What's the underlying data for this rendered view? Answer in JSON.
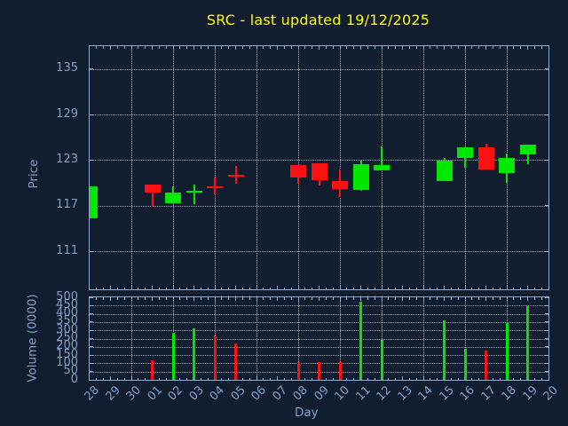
{
  "title": "SRC - last updated 19/12/2025",
  "colors": {
    "background": "#131d30",
    "axis_frame": "#8aaad2",
    "tick_label": "#7f9fc8",
    "grid": "#c9ccd4",
    "title": "#ffff00",
    "bull": "#00e800",
    "bear": "#ff1111"
  },
  "chart_data": {
    "type": "candlestick_with_volume",
    "title": "SRC - last updated 19/12/2025",
    "xlabel": "Day",
    "categories": [
      "28",
      "29",
      "30",
      "01",
      "02",
      "03",
      "04",
      "05",
      "06",
      "07",
      "08",
      "09",
      "10",
      "11",
      "12",
      "13",
      "14",
      "15",
      "16",
      "17",
      "18",
      "19",
      "20"
    ],
    "no_data_days": [
      "29",
      "30",
      "06",
      "07",
      "13",
      "14",
      "20"
    ],
    "price_axis": {
      "label": "Price",
      "ylim": [
        106,
        138
      ],
      "yticks": [
        111,
        117,
        123,
        129,
        135
      ],
      "grid": true
    },
    "volume_axis": {
      "label": "Volume (0000)",
      "ylim": [
        0,
        500
      ],
      "yticks": [
        0,
        50,
        100,
        150,
        200,
        250,
        300,
        350,
        400,
        450,
        500
      ],
      "grid": true
    },
    "candles": [
      {
        "day": "28",
        "open": 115.3,
        "high": 119.6,
        "low": 115.3,
        "close": 119.6,
        "volume": 0
      },
      {
        "day": "01",
        "open": 119.8,
        "high": 119.8,
        "low": 116.9,
        "close": 118.7,
        "volume": 120
      },
      {
        "day": "02",
        "open": 117.3,
        "high": 119.5,
        "low": 117.3,
        "close": 118.7,
        "volume": 285
      },
      {
        "day": "03",
        "open": 118.9,
        "high": 119.8,
        "low": 117.2,
        "close": 119.0,
        "volume": 310
      },
      {
        "day": "04",
        "open": 119.6,
        "high": 120.7,
        "low": 118.5,
        "close": 119.5,
        "volume": 270
      },
      {
        "day": "05",
        "open": 121.1,
        "high": 122.2,
        "low": 119.9,
        "close": 121.0,
        "volume": 220
      },
      {
        "day": "08",
        "open": 122.4,
        "high": 122.4,
        "low": 119.9,
        "close": 120.7,
        "volume": 110
      },
      {
        "day": "09",
        "open": 122.6,
        "high": 122.6,
        "low": 119.7,
        "close": 120.4,
        "volume": 110
      },
      {
        "day": "10",
        "open": 120.3,
        "high": 121.8,
        "low": 118.1,
        "close": 119.2,
        "volume": 110
      },
      {
        "day": "11",
        "open": 119.1,
        "high": 122.9,
        "low": 119.0,
        "close": 122.5,
        "volume": 475
      },
      {
        "day": "12",
        "open": 121.7,
        "high": 124.8,
        "low": 121.7,
        "close": 122.4,
        "volume": 240
      },
      {
        "day": "15",
        "open": 120.3,
        "high": 123.3,
        "low": 120.3,
        "close": 122.9,
        "volume": 360
      },
      {
        "day": "16",
        "open": 123.3,
        "high": 124.7,
        "low": 122.0,
        "close": 124.7,
        "volume": 190
      },
      {
        "day": "17",
        "open": 124.7,
        "high": 125.1,
        "low": 121.8,
        "close": 121.8,
        "volume": 175
      },
      {
        "day": "18",
        "open": 121.3,
        "high": 123.9,
        "low": 120.0,
        "close": 123.3,
        "volume": 345
      },
      {
        "day": "19",
        "open": 123.7,
        "high": 125.0,
        "low": 122.5,
        "close": 125.0,
        "volume": 445
      }
    ]
  }
}
